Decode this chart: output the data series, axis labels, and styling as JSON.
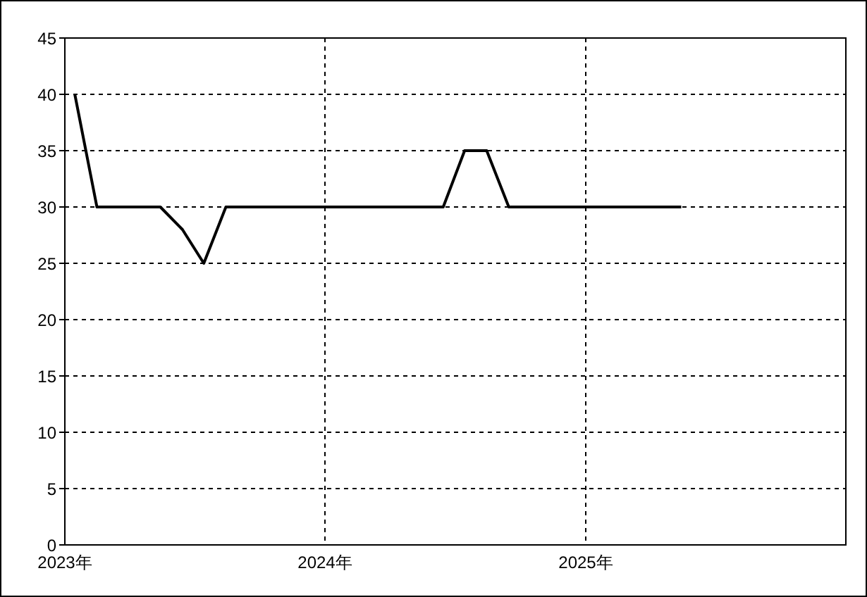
{
  "chart_data": {
    "type": "line",
    "x": [
      "2023-01-15",
      "2023-02-15",
      "2023-03-15",
      "2023-04-15",
      "2023-05-15",
      "2023-06-15",
      "2023-07-15",
      "2023-08-15",
      "2023-09-15",
      "2023-10-15",
      "2023-11-15",
      "2023-12-15",
      "2024-01-15",
      "2024-02-15",
      "2024-03-15",
      "2024-04-15",
      "2024-05-15",
      "2024-06-15",
      "2024-07-15",
      "2024-08-15",
      "2024-09-15",
      "2024-10-15",
      "2024-11-15",
      "2024-12-15",
      "2025-01-15",
      "2025-02-15",
      "2025-03-15",
      "2025-04-15",
      "2025-05-15"
    ],
    "series": [
      {
        "color": "#000000",
        "values": [
          40,
          30,
          30,
          30,
          30,
          28,
          25,
          30,
          30,
          30,
          30,
          30,
          30,
          30,
          30,
          30,
          30,
          30,
          35,
          35,
          30,
          30,
          30,
          30,
          30,
          30,
          30,
          30,
          30
        ]
      }
    ],
    "xlim": [
      "2023-01-01",
      "2026-01-01"
    ],
    "xticks": [
      {
        "value": "2023-01-01",
        "label": "2023年"
      },
      {
        "value": "2024-01-01",
        "label": "2024年"
      },
      {
        "value": "2025-01-01",
        "label": "2025年"
      }
    ],
    "ylim": [
      0,
      45
    ],
    "yticks": [
      0,
      5,
      10,
      15,
      20,
      25,
      30,
      35,
      40,
      45
    ],
    "grid": true,
    "marker": "none",
    "line_style": "solid",
    "legend": false
  }
}
